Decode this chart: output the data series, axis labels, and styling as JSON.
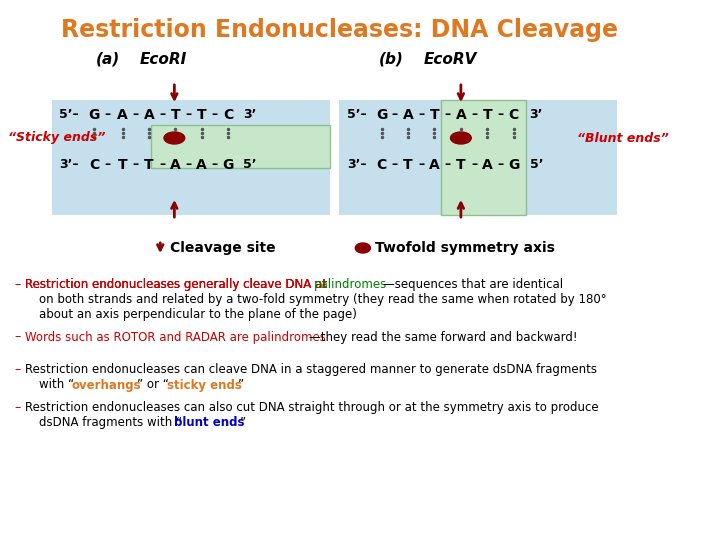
{
  "title": "Restriction Endonucleases: DNA Cleavage",
  "title_color": "#E07820",
  "bg_color": "#ffffff",
  "label_a": "(a)   EcoRI",
  "label_b": "(b)   EcoRV",
  "sticky_ends_label": "“Sticky ends”",
  "blunt_ends_label": "“Blunt ends”",
  "seq_top_a": "5’– G – A – A – T – T – C – 3’",
  "seq_bot_a": "3’– C – T – T – A – A – G – 5’",
  "seq_top_b": "5’– G – A – T – A – T – C – 3’",
  "seq_bot_b": "3’– C – T – A – T – A – G – 5’",
  "box_color_outer": "#b8d8e8",
  "box_color_inner": "#c8e8c8",
  "dot_color": "#555555",
  "arrow_color": "#8B0000",
  "axis_color": "#8B0000",
  "label_color_red": "#cc0000",
  "label_color_green": "#008000",
  "label_color_orange": "#E07820",
  "text_color": "#000000",
  "bullet1_red": "Restriction endonucleases generally cleave DNA at ",
  "bullet1_green": "palindromes",
  "bullet1_black": "—sequences that are identical\non both strands and related by a two-fold symmetry (they read the same when rotated by 180°\nabout an axis perpendicular to the plane of the page)",
  "bullet2_red": "Words such as ROTOR and RADAR are palindromes",
  "bullet2_black": "—they read the same forward and backward!",
  "bullet3_black1": "Restriction endonucleases can cleave DNA in a staggered manner to generate dsDNA fragments\nwith “",
  "bullet3_orange": "overhangs",
  "bullet3_black2": "” or “",
  "bullet3_orange2": "sticky ends",
  "bullet3_black3": "”",
  "bullet4_black1": "Restriction endonucleases can also cut DNA straight through or at the symmetry axis to produce\ndsDNA fragments with “",
  "bullet4_blue": "blunt ends",
  "bullet4_black2": "”",
  "legend_arrow": "↓  Cleavage site",
  "legend_axis": "  Twofold symmetry axis"
}
